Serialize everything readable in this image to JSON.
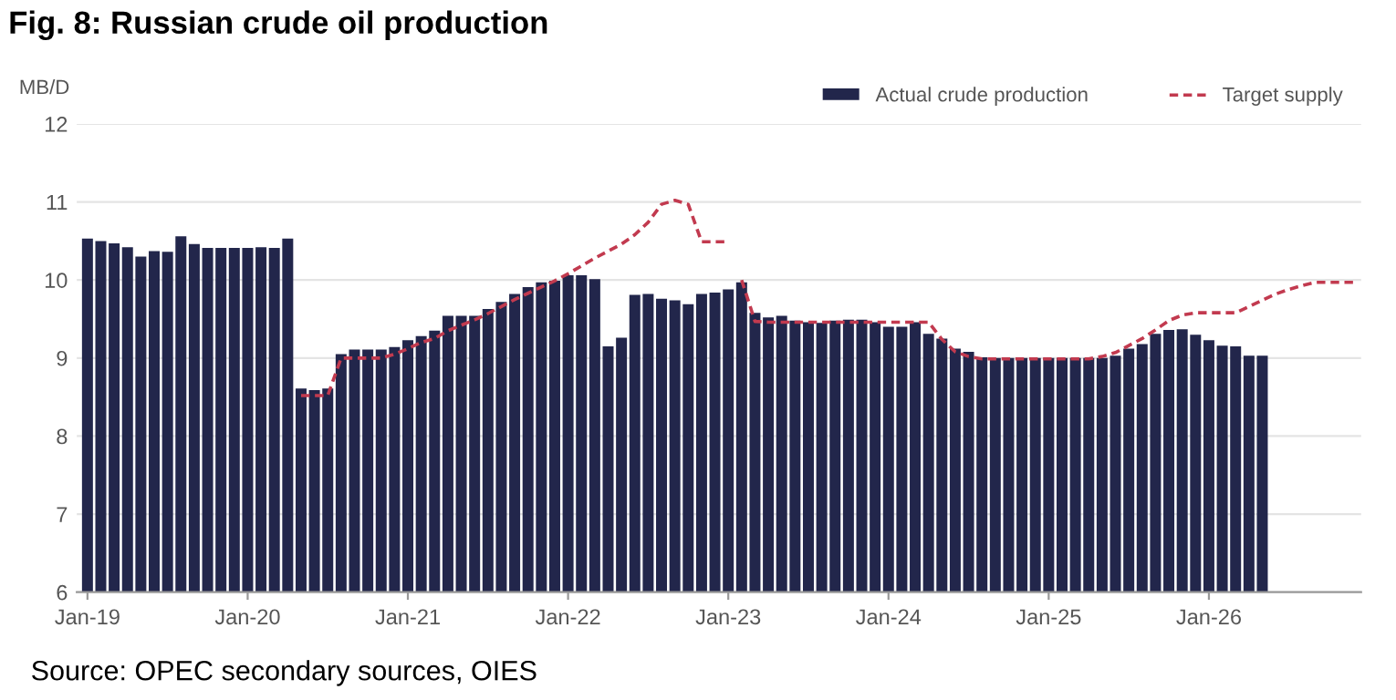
{
  "chart_data": {
    "type": "bar",
    "title": "Fig. 8: Russian crude oil production",
    "ylabel": "MB/D",
    "categories": [
      "Jan-19",
      null,
      null,
      null,
      null,
      null,
      null,
      null,
      null,
      null,
      null,
      null,
      "Jan-20",
      null,
      null,
      null,
      null,
      null,
      null,
      null,
      null,
      null,
      null,
      null,
      "Jan-21",
      null,
      null,
      null,
      null,
      null,
      null,
      null,
      null,
      null,
      null,
      null,
      "Jan-22",
      null,
      null,
      null,
      null,
      null,
      null,
      null,
      null,
      null,
      null,
      null,
      "Jan-23",
      null,
      null,
      null,
      null,
      null,
      null,
      null,
      null,
      null,
      null,
      null,
      "Jan-24",
      null,
      null,
      null,
      null,
      null,
      null,
      null,
      null,
      null,
      null,
      null,
      "Jan-25",
      null,
      null,
      null,
      null,
      null,
      null,
      null,
      null,
      null,
      null,
      null,
      "Jan-26",
      null,
      null,
      null,
      null,
      null,
      null,
      null,
      null,
      null,
      null,
      null
    ],
    "series": [
      {
        "name": "Actual crude production",
        "color": "#22264b",
        "values": [
          10.53,
          10.5,
          10.47,
          10.42,
          10.3,
          10.37,
          10.36,
          10.56,
          10.46,
          10.41,
          10.41,
          10.41,
          10.41,
          10.42,
          10.41,
          10.53,
          8.61,
          8.59,
          8.61,
          9.05,
          9.11,
          9.11,
          9.11,
          9.14,
          9.23,
          9.28,
          9.35,
          9.54,
          9.54,
          9.54,
          9.63,
          9.72,
          9.82,
          9.91,
          9.97,
          9.99,
          10.06,
          10.06,
          10.01,
          9.15,
          9.26,
          9.81,
          9.82,
          9.76,
          9.74,
          9.69,
          9.82,
          9.84,
          9.88,
          9.97,
          9.58,
          9.52,
          9.54,
          9.48,
          9.46,
          9.45,
          9.48,
          9.49,
          9.49,
          9.46,
          9.4,
          9.4,
          9.46,
          9.31,
          9.25,
          9.12,
          9.08,
          9.01,
          9.0,
          9.0,
          9.0,
          9.0,
          9.0,
          9.0,
          9.0,
          9.0,
          9.0,
          9.03,
          9.12,
          9.18,
          9.31,
          9.36,
          9.37,
          9.3,
          9.23,
          9.16,
          9.15,
          9.03,
          9.03,
          null,
          null,
          null,
          null,
          null,
          null,
          null
        ]
      },
      {
        "name": "Target supply",
        "type": "line",
        "line_style": "dashed",
        "color": "#c23a4f",
        "values": [
          null,
          null,
          null,
          null,
          null,
          null,
          null,
          null,
          null,
          null,
          null,
          null,
          null,
          null,
          null,
          null,
          8.52,
          8.52,
          8.52,
          9.0,
          9.0,
          9.0,
          9.0,
          9.05,
          9.12,
          9.2,
          9.25,
          9.35,
          9.42,
          9.49,
          9.57,
          9.66,
          9.75,
          9.83,
          9.91,
          9.99,
          10.08,
          10.18,
          10.28,
          10.37,
          10.46,
          10.58,
          10.74,
          10.97,
          11.02,
          10.97,
          10.49,
          10.49,
          10.49,
          null,
          null,
          null,
          null,
          null,
          null,
          null,
          null,
          null,
          null,
          null,
          null,
          null,
          null,
          null,
          null,
          null,
          null,
          null,
          null,
          null,
          null,
          null,
          null,
          null,
          null,
          null,
          null,
          null,
          null,
          null,
          null,
          null,
          null,
          null,
          null,
          null,
          null,
          null,
          null,
          null,
          null,
          null,
          null,
          null,
          null,
          null
        ]
      },
      {
        "type": "line",
        "line_style": "dashed",
        "color": "#c23a4f",
        "values": [
          null,
          null,
          null,
          null,
          null,
          null,
          null,
          null,
          null,
          null,
          null,
          null,
          null,
          null,
          null,
          null,
          null,
          null,
          null,
          null,
          null,
          null,
          null,
          null,
          null,
          null,
          null,
          null,
          null,
          null,
          null,
          null,
          null,
          null,
          null,
          null,
          null,
          null,
          null,
          null,
          null,
          null,
          null,
          null,
          null,
          null,
          null,
          null,
          null,
          10.0,
          9.47,
          9.46,
          9.46,
          9.46,
          9.46,
          9.46,
          9.46,
          9.46,
          9.46,
          9.46,
          9.46,
          9.46,
          9.46,
          9.46,
          9.24,
          9.08,
          9.02,
          8.99,
          8.99,
          8.99,
          8.99,
          8.99,
          8.99,
          8.99,
          8.99,
          8.99,
          9.02,
          9.07,
          9.16,
          9.25,
          9.36,
          9.48,
          9.55,
          9.58,
          9.58,
          9.58,
          9.58,
          9.66,
          9.74,
          9.82,
          9.88,
          9.93,
          9.97,
          9.97,
          9.97,
          9.97
        ]
      }
    ],
    "ylim": [
      6,
      12
    ],
    "yticks": [
      6,
      7,
      8,
      9,
      10,
      11,
      12
    ],
    "grid": "y",
    "legend": "top right",
    "annotations": [
      "Source: OPEC secondary sources, OIES"
    ]
  }
}
